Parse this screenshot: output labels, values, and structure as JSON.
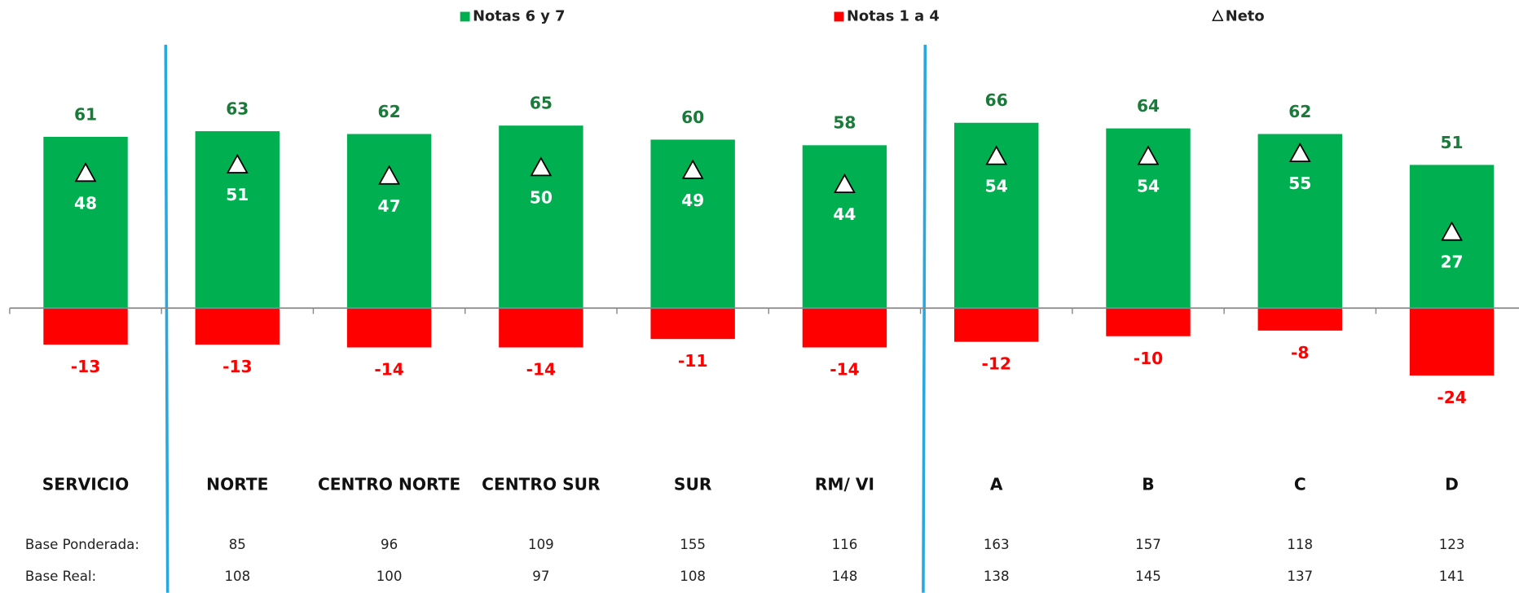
{
  "chart_data": {
    "type": "bar",
    "categories": [
      "SERVICIO",
      "NORTE",
      "CENTRO NORTE",
      "CENTRO SUR",
      "SUR",
      "RM/ VI",
      "A",
      "B",
      "C",
      "D"
    ],
    "series": [
      {
        "name": "Notas 6 y 7",
        "color": "#00b050",
        "label_color": "#1a7a3a",
        "values": [
          61,
          63,
          62,
          65,
          60,
          58,
          66,
          64,
          62,
          51
        ]
      },
      {
        "name": "Notas 1 a 4",
        "color": "#ff0000",
        "label_color": "#ff0000",
        "values": [
          -13,
          -13,
          -14,
          -14,
          -11,
          -14,
          -12,
          -10,
          -8,
          -24
        ]
      },
      {
        "name": "Neto",
        "color": "#ffffff",
        "label_color": "#ffffff",
        "marker": "triangle",
        "values": [
          48,
          51,
          47,
          50,
          49,
          44,
          54,
          54,
          55,
          27
        ]
      }
    ],
    "ylim": [
      -30,
      80
    ],
    "table": {
      "rows": [
        {
          "label": "Base Ponderada:",
          "values": [
            85,
            96,
            109,
            155,
            116,
            163,
            157,
            118,
            123
          ]
        },
        {
          "label": "Base Real:",
          "values": [
            108,
            100,
            97,
            108,
            148,
            138,
            145,
            137,
            141
          ]
        }
      ]
    }
  }
}
